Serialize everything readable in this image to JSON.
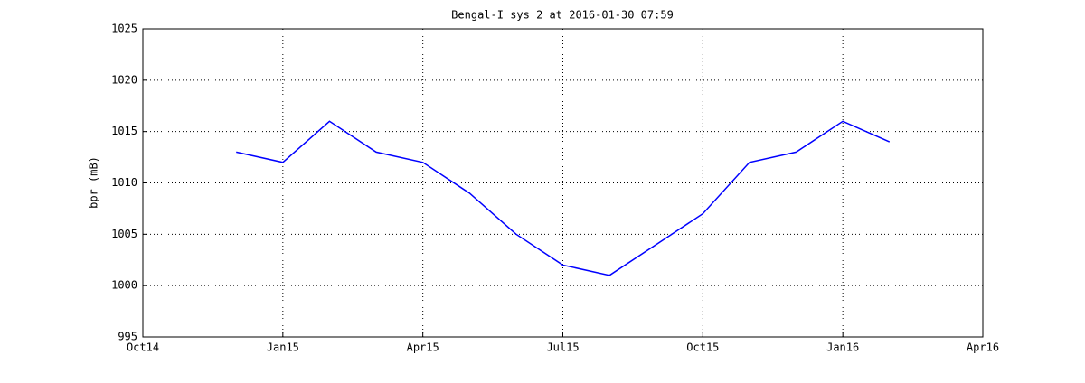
{
  "chart_data": {
    "type": "line",
    "title": "Bengal-I sys 2 at 2016-01-30 07:59",
    "y_label": "bpr (mB)",
    "x": [
      "2014-12",
      "2015-01",
      "2015-02",
      "2015-03",
      "2015-04",
      "2015-05",
      "2015-06",
      "2015-07",
      "2015-08",
      "2015-09",
      "2015-10",
      "2015-11",
      "2015-12",
      "2016-01",
      "2016-02"
    ],
    "values": [
      1013,
      1012,
      1016,
      1013,
      1012,
      1009,
      1005,
      1002,
      1001,
      1004,
      1007,
      1012,
      1013,
      1016,
      1014
    ],
    "color": "#0000ff",
    "xlim": [
      "2014-10",
      "2016-04"
    ],
    "xticks": [
      {
        "value": "2014-10",
        "label": "Oct14"
      },
      {
        "value": "2015-01",
        "label": "Jan15"
      },
      {
        "value": "2015-04",
        "label": "Apr15"
      },
      {
        "value": "2015-07",
        "label": "Jul15"
      },
      {
        "value": "2015-10",
        "label": "Oct15"
      },
      {
        "value": "2016-01",
        "label": "Jan16"
      },
      {
        "value": "2016-04",
        "label": "Apr16"
      }
    ],
    "ylim": [
      995,
      1025
    ],
    "yticks": [
      995,
      1000,
      1005,
      1010,
      1015,
      1020,
      1025
    ],
    "grid": true
  }
}
